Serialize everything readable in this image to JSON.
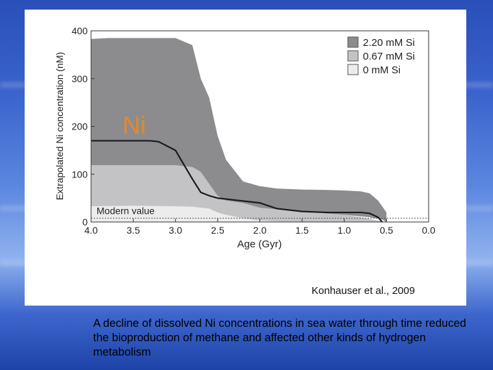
{
  "chart_data": {
    "type": "area",
    "title": "",
    "panel_label": "Ni",
    "xlabel": "Age (Gyr)",
    "ylabel": "Extrapolated Ni concentration (nM)",
    "xlim": [
      4.0,
      0.0
    ],
    "ylim": [
      0,
      400
    ],
    "x_reversed": true,
    "x_ticks": [
      "4.0",
      "3.5",
      "3.0",
      "2.5",
      "2.0",
      "1.5",
      "1.0",
      "0.5",
      "0.0"
    ],
    "y_ticks": [
      "0",
      "100",
      "200",
      "300",
      "400"
    ],
    "grid": false,
    "legend_position": "top-right",
    "series": [
      {
        "name": "2.20 mM Si",
        "color": "#8c8c8e",
        "x": [
          4.0,
          3.8,
          3.5,
          3.3,
          3.0,
          2.8,
          2.7,
          2.6,
          2.5,
          2.4,
          2.2,
          2.0,
          1.8,
          1.5,
          1.2,
          1.0,
          0.8,
          0.7,
          0.6,
          0.5,
          0.5,
          0.55,
          0.7,
          1.0,
          1.5,
          2.0,
          2.5,
          2.8,
          3.0,
          3.3,
          3.5,
          3.8,
          4.0
        ],
        "y_upper": [
          383,
          385,
          385,
          385,
          385,
          370,
          300,
          260,
          180,
          130,
          85,
          75,
          70,
          68,
          67,
          66,
          64,
          60,
          45,
          20,
          0,
          5,
          10,
          15,
          20,
          25,
          30,
          30,
          30,
          30,
          30,
          30,
          30
        ]
      },
      {
        "name": "0.67 mM Si",
        "color": "#c3c3c5",
        "x": [
          4.0,
          3.5,
          3.2,
          3.0,
          2.8,
          2.7,
          2.6,
          2.5,
          2.4,
          2.2,
          2.0,
          1.5,
          1.0,
          0.8,
          0.6,
          0.5
        ],
        "y": [
          119,
          119,
          119,
          119,
          115,
          105,
          80,
          55,
          45,
          40,
          30,
          22,
          15,
          10,
          3,
          0
        ]
      },
      {
        "name": "0 mM Si",
        "color": "#ececec",
        "x": [
          4.0,
          3.5,
          3.0,
          2.8,
          2.6,
          2.5,
          2.4,
          2.2,
          2.0,
          1.8,
          1.5
        ],
        "y": [
          33,
          34,
          33,
          32,
          28,
          20,
          15,
          8,
          3,
          1,
          0
        ]
      }
    ],
    "median_line": {
      "x": [
        4.0,
        3.8,
        3.5,
        3.3,
        3.2,
        3.0,
        2.9,
        2.8,
        2.7,
        2.6,
        2.5,
        2.3,
        2.0,
        1.8,
        1.5,
        1.2,
        1.0,
        0.8,
        0.7,
        0.6,
        0.55
      ],
      "y": [
        170,
        170,
        170,
        170,
        168,
        150,
        120,
        90,
        62,
        55,
        50,
        46,
        40,
        28,
        22,
        20,
        20,
        20,
        18,
        10,
        0
      ]
    },
    "modern_value": 8,
    "modern_value_label": "Modern value"
  },
  "citation": "Konhauser et al., 2009",
  "caption": "A decline of dissolved Ni concentrations in sea water through time reduced the bioproduction of methane and affected other kinds of hydrogen metabolism"
}
